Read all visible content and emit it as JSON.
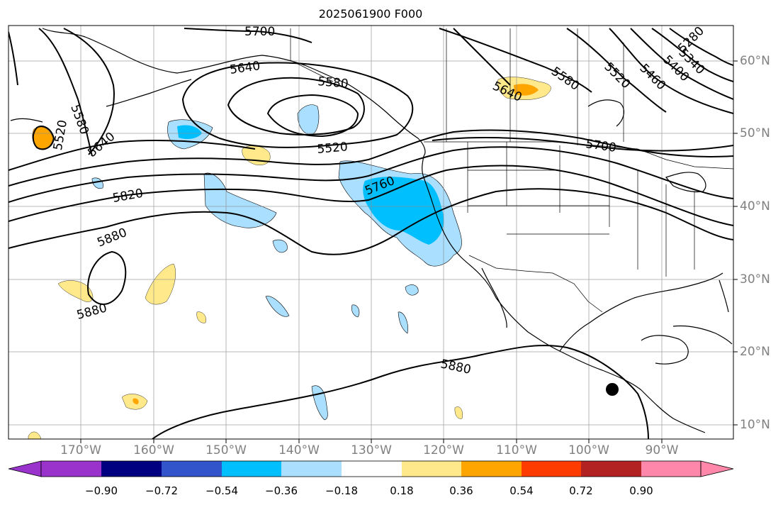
{
  "title": "2025061900 F000",
  "lat_labels": [
    "60°N",
    "50°N",
    "40°N",
    "30°N",
    "20°N",
    "10°N"
  ],
  "lon_labels": [
    "170°W",
    "160°W",
    "150°W",
    "140°W",
    "130°W",
    "120°W",
    "110°W",
    "100°W",
    "90°W"
  ],
  "colorbar": {
    "ticks": [
      "−0.90",
      "−0.72",
      "−0.54",
      "−0.36",
      "−0.18",
      "0.18",
      "0.36",
      "0.54",
      "0.72",
      "0.90"
    ],
    "colors": [
      "#9933cc",
      "#000080",
      "#3355cc",
      "#00bfff",
      "#aadfff",
      "#ffffff",
      "#ffe98a",
      "#ffa500",
      "#ff3c00",
      "#b22222",
      "#ff88aa"
    ]
  },
  "contour_labels": {
    "c1": "5700",
    "c2": "5640",
    "c3": "5580",
    "c4": "5520",
    "c5": "5580",
    "c6": "5520",
    "c7": "5520",
    "c8": "5640",
    "c9": "5640",
    "c10": "5580",
    "c11": "5520",
    "c12": "5460",
    "c13": "5400",
    "c14": "5340",
    "c15": "5280",
    "c16": "5700",
    "c17": "5760",
    "c18": "5820",
    "c19": "5880",
    "c20": "5880",
    "c21": "5880"
  },
  "colors": {
    "positive_light": "#ffe98a",
    "positive_mid": "#ffa500",
    "negative_light": "#aadfff",
    "negative_mid": "#00bfff"
  }
}
